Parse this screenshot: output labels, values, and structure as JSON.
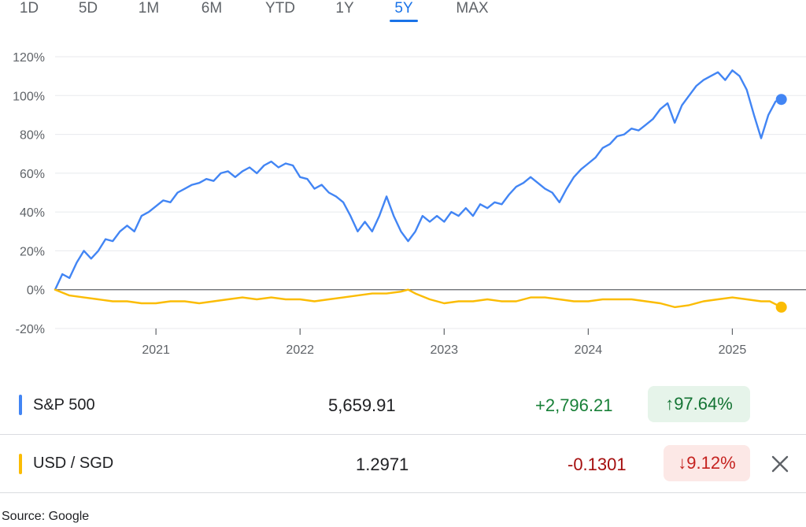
{
  "range_tabs": {
    "items": [
      "1D",
      "5D",
      "1M",
      "6M",
      "YTD",
      "1Y",
      "5Y",
      "MAX"
    ],
    "active": "5Y"
  },
  "chart_data": {
    "type": "line",
    "x_axis_ticks": [
      "2021",
      "2022",
      "2023",
      "2024",
      "2025"
    ],
    "x_range": [
      2020.3,
      2025.38
    ],
    "y_axis_ticks": [
      "120%",
      "100%",
      "80%",
      "60%",
      "40%",
      "20%",
      "0%",
      "-20%"
    ],
    "ylim": [
      -20,
      120
    ],
    "grid": true,
    "series": [
      {
        "name": "S&P 500",
        "color": "#4285f4",
        "points": [
          [
            2020.3,
            0
          ],
          [
            2020.35,
            8
          ],
          [
            2020.4,
            6
          ],
          [
            2020.45,
            14
          ],
          [
            2020.5,
            20
          ],
          [
            2020.55,
            16
          ],
          [
            2020.6,
            20
          ],
          [
            2020.65,
            26
          ],
          [
            2020.7,
            25
          ],
          [
            2020.75,
            30
          ],
          [
            2020.8,
            33
          ],
          [
            2020.85,
            30
          ],
          [
            2020.9,
            38
          ],
          [
            2020.95,
            40
          ],
          [
            2021.0,
            43
          ],
          [
            2021.05,
            46
          ],
          [
            2021.1,
            45
          ],
          [
            2021.15,
            50
          ],
          [
            2021.2,
            52
          ],
          [
            2021.25,
            54
          ],
          [
            2021.3,
            55
          ],
          [
            2021.35,
            57
          ],
          [
            2021.4,
            56
          ],
          [
            2021.45,
            60
          ],
          [
            2021.5,
            61
          ],
          [
            2021.55,
            58
          ],
          [
            2021.6,
            61
          ],
          [
            2021.65,
            63
          ],
          [
            2021.7,
            60
          ],
          [
            2021.75,
            64
          ],
          [
            2021.8,
            66
          ],
          [
            2021.85,
            63
          ],
          [
            2021.9,
            65
          ],
          [
            2021.95,
            64
          ],
          [
            2022.0,
            58
          ],
          [
            2022.05,
            57
          ],
          [
            2022.1,
            52
          ],
          [
            2022.15,
            54
          ],
          [
            2022.2,
            50
          ],
          [
            2022.25,
            48
          ],
          [
            2022.3,
            45
          ],
          [
            2022.35,
            38
          ],
          [
            2022.4,
            30
          ],
          [
            2022.45,
            35
          ],
          [
            2022.5,
            30
          ],
          [
            2022.55,
            38
          ],
          [
            2022.6,
            48
          ],
          [
            2022.65,
            38
          ],
          [
            2022.7,
            30
          ],
          [
            2022.75,
            25
          ],
          [
            2022.8,
            30
          ],
          [
            2022.85,
            38
          ],
          [
            2022.9,
            35
          ],
          [
            2022.95,
            38
          ],
          [
            2023.0,
            35
          ],
          [
            2023.05,
            40
          ],
          [
            2023.1,
            38
          ],
          [
            2023.15,
            42
          ],
          [
            2023.2,
            38
          ],
          [
            2023.25,
            44
          ],
          [
            2023.3,
            42
          ],
          [
            2023.35,
            45
          ],
          [
            2023.4,
            44
          ],
          [
            2023.45,
            49
          ],
          [
            2023.5,
            53
          ],
          [
            2023.55,
            55
          ],
          [
            2023.6,
            58
          ],
          [
            2023.65,
            55
          ],
          [
            2023.7,
            52
          ],
          [
            2023.75,
            50
          ],
          [
            2023.8,
            45
          ],
          [
            2023.85,
            52
          ],
          [
            2023.9,
            58
          ],
          [
            2023.95,
            62
          ],
          [
            2024.0,
            65
          ],
          [
            2024.05,
            68
          ],
          [
            2024.1,
            73
          ],
          [
            2024.15,
            75
          ],
          [
            2024.2,
            79
          ],
          [
            2024.25,
            80
          ],
          [
            2024.3,
            83
          ],
          [
            2024.35,
            82
          ],
          [
            2024.4,
            85
          ],
          [
            2024.45,
            88
          ],
          [
            2024.5,
            93
          ],
          [
            2024.55,
            96
          ],
          [
            2024.6,
            86
          ],
          [
            2024.65,
            95
          ],
          [
            2024.7,
            100
          ],
          [
            2024.75,
            105
          ],
          [
            2024.8,
            108
          ],
          [
            2024.85,
            110
          ],
          [
            2024.9,
            112
          ],
          [
            2024.95,
            108
          ],
          [
            2025.0,
            113
          ],
          [
            2025.05,
            110
          ],
          [
            2025.1,
            103
          ],
          [
            2025.15,
            90
          ],
          [
            2025.2,
            78
          ],
          [
            2025.25,
            90
          ],
          [
            2025.3,
            97
          ],
          [
            2025.34,
            98
          ]
        ],
        "last_value": "5,659.91",
        "change": "+2,796.21",
        "change_pct": "↑97.64%",
        "direction": "up"
      },
      {
        "name": "USD / SGD",
        "color": "#fbbc04",
        "points": [
          [
            2020.3,
            0
          ],
          [
            2020.4,
            -3
          ],
          [
            2020.5,
            -4
          ],
          [
            2020.6,
            -5
          ],
          [
            2020.7,
            -6
          ],
          [
            2020.8,
            -6
          ],
          [
            2020.9,
            -7
          ],
          [
            2021.0,
            -7
          ],
          [
            2021.1,
            -6
          ],
          [
            2021.2,
            -6
          ],
          [
            2021.3,
            -7
          ],
          [
            2021.4,
            -6
          ],
          [
            2021.5,
            -5
          ],
          [
            2021.6,
            -4
          ],
          [
            2021.7,
            -5
          ],
          [
            2021.8,
            -4
          ],
          [
            2021.9,
            -5
          ],
          [
            2022.0,
            -5
          ],
          [
            2022.1,
            -6
          ],
          [
            2022.2,
            -5
          ],
          [
            2022.3,
            -4
          ],
          [
            2022.4,
            -3
          ],
          [
            2022.5,
            -2
          ],
          [
            2022.6,
            -2
          ],
          [
            2022.7,
            -1
          ],
          [
            2022.75,
            0
          ],
          [
            2022.8,
            -2
          ],
          [
            2022.9,
            -5
          ],
          [
            2023.0,
            -7
          ],
          [
            2023.1,
            -6
          ],
          [
            2023.2,
            -6
          ],
          [
            2023.3,
            -5
          ],
          [
            2023.4,
            -6
          ],
          [
            2023.5,
            -6
          ],
          [
            2023.6,
            -4
          ],
          [
            2023.7,
            -4
          ],
          [
            2023.8,
            -5
          ],
          [
            2023.9,
            -6
          ],
          [
            2024.0,
            -6
          ],
          [
            2024.1,
            -5
          ],
          [
            2024.2,
            -5
          ],
          [
            2024.3,
            -5
          ],
          [
            2024.4,
            -6
          ],
          [
            2024.5,
            -7
          ],
          [
            2024.6,
            -9
          ],
          [
            2024.7,
            -8
          ],
          [
            2024.8,
            -6
          ],
          [
            2024.9,
            -5
          ],
          [
            2025.0,
            -4
          ],
          [
            2025.1,
            -5
          ],
          [
            2025.2,
            -6
          ],
          [
            2025.26,
            -6
          ],
          [
            2025.34,
            -9
          ]
        ],
        "last_value": "1.2971",
        "change": "-0.1301",
        "change_pct": "↓9.12%",
        "direction": "down"
      }
    ]
  },
  "close_icon": "close-icon",
  "source": "Source: Google"
}
